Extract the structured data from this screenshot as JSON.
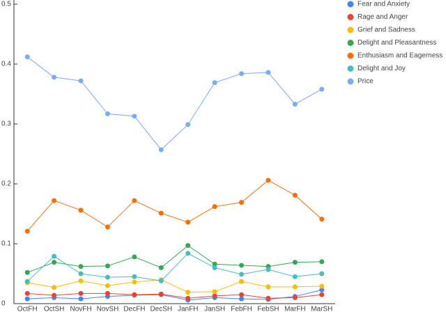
{
  "chart_data": {
    "type": "line",
    "categories": [
      "OctFH",
      "OctSH",
      "NovFH",
      "NovSH",
      "DecFH",
      "DecSH",
      "JanFH",
      "JanSH",
      "FebFH",
      "FebSH",
      "MarFH",
      "MarSH"
    ],
    "series": [
      {
        "name": "Fear and Anxiety",
        "color": "#4285f4",
        "values": [
          0.008,
          0.01,
          0.008,
          0.012,
          0.014,
          0.015,
          0.006,
          0.01,
          0.008,
          0.007,
          0.012,
          0.023
        ]
      },
      {
        "name": "Rage and Anger",
        "color": "#ea4335",
        "values": [
          0.017,
          0.014,
          0.017,
          0.017,
          0.015,
          0.016,
          0.009,
          0.013,
          0.015,
          0.009,
          0.01,
          0.015
        ]
      },
      {
        "name": "Grief and Sadness",
        "color": "#fbbc04",
        "values": [
          0.035,
          0.027,
          0.038,
          0.03,
          0.036,
          0.04,
          0.019,
          0.02,
          0.037,
          0.028,
          0.028,
          0.029
        ]
      },
      {
        "name": "Delight and Pleasantness",
        "color": "#34a853",
        "values": [
          0.052,
          0.069,
          0.062,
          0.063,
          0.078,
          0.06,
          0.097,
          0.066,
          0.064,
          0.062,
          0.069,
          0.07
        ]
      },
      {
        "name": "Enthusiasm and Eagerness",
        "color": "#ff6d01",
        "values": [
          0.121,
          0.172,
          0.156,
          0.128,
          0.172,
          0.151,
          0.136,
          0.162,
          0.169,
          0.206,
          0.181,
          0.141
        ]
      },
      {
        "name": "Delight and Joy",
        "color": "#46bdc6",
        "values": [
          0.037,
          0.079,
          0.05,
          0.044,
          0.045,
          0.038,
          0.084,
          0.06,
          0.049,
          0.057,
          0.045,
          0.05
        ]
      },
      {
        "name": "Price",
        "color": "#7baaf7",
        "values": [
          0.412,
          0.378,
          0.372,
          0.317,
          0.313,
          0.257,
          0.299,
          0.369,
          0.384,
          0.386,
          0.333,
          0.358
        ]
      }
    ],
    "ylim": [
      0,
      0.5
    ],
    "yticks": [
      0,
      0.1,
      0.2,
      0.3,
      0.4,
      0.5
    ],
    "grid": false,
    "legend": "right"
  }
}
